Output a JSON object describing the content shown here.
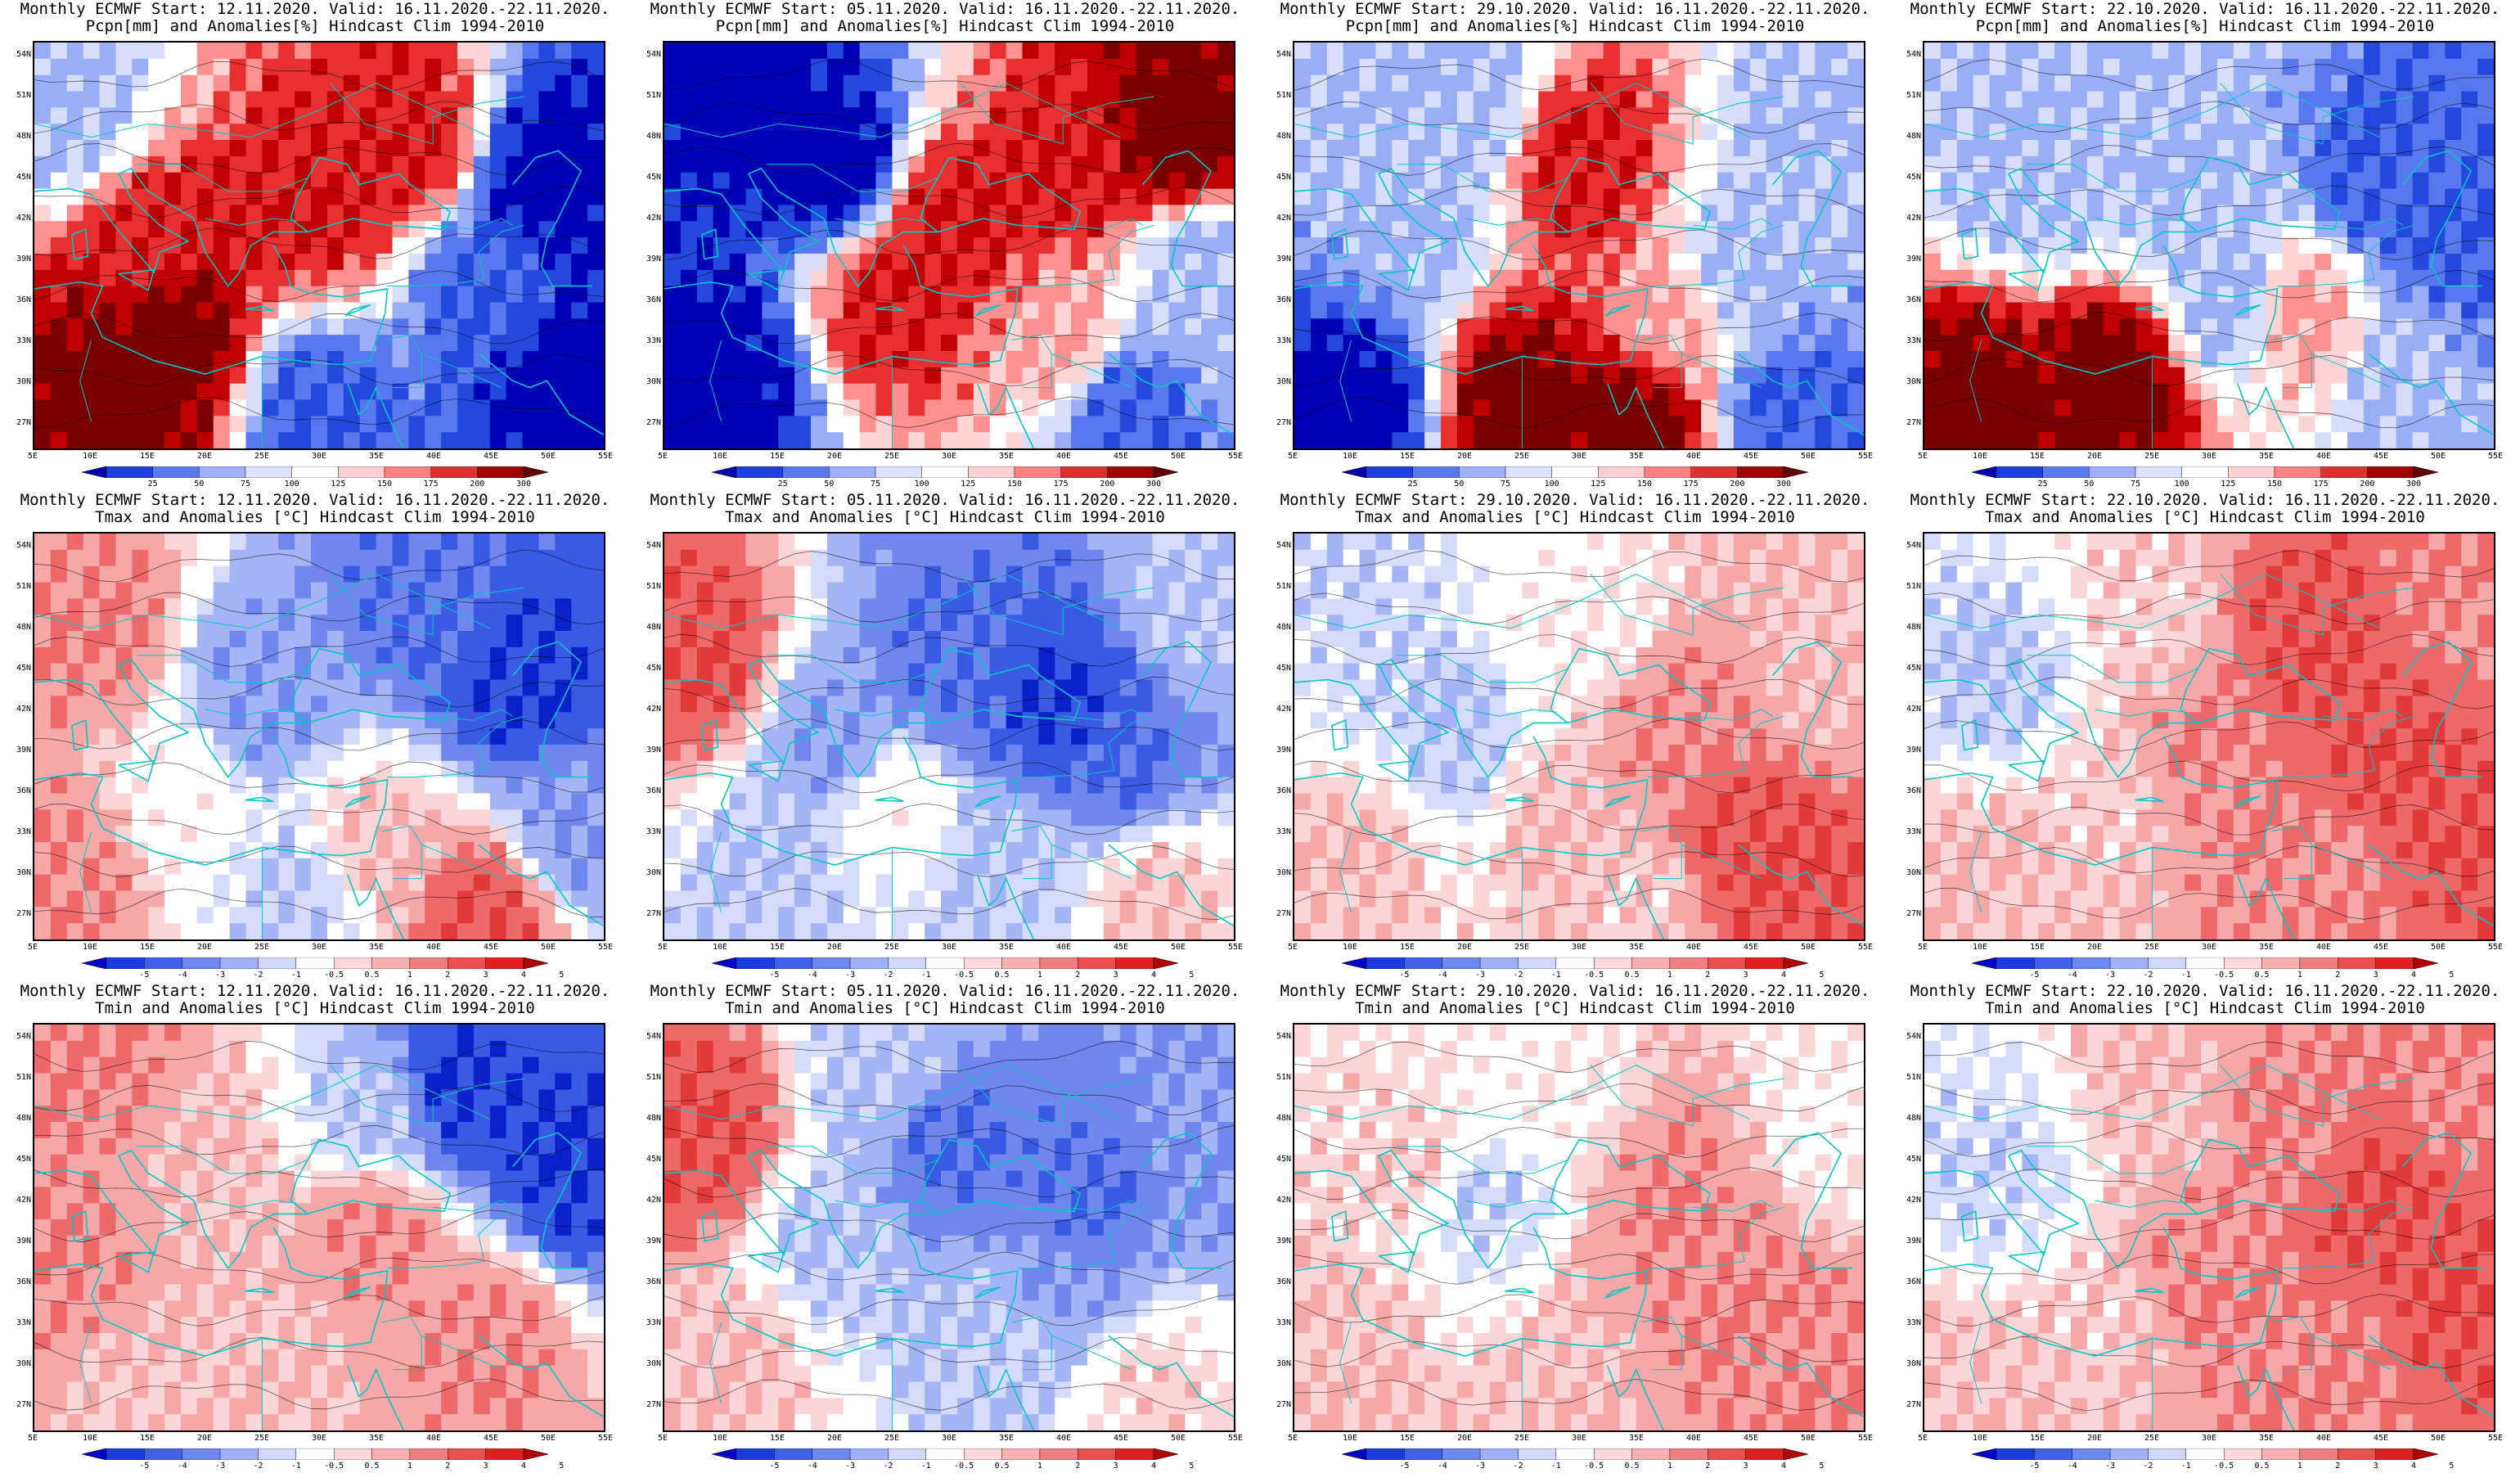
{
  "rows": [
    {
      "variable": "Pcpn[mm] and Anomalies[%] Hindcast Clim 1994-2010",
      "kind": "precip",
      "colorbar_ticks": [
        "25",
        "50",
        "75",
        "100",
        "125",
        "150",
        "175",
        "200",
        "300"
      ],
      "colorbar_colors": [
        "#0000b0",
        "#1f3fe0",
        "#5a78f0",
        "#9fb0f8",
        "#dce4fc",
        "#ffffff",
        "#ffd0d0",
        "#ff8080",
        "#e03030",
        "#a00000",
        "#600000"
      ]
    },
    {
      "variable": "Tmax and Anomalies [°C] Hindcast Clim 1994-2010",
      "kind": "temp",
      "colorbar_ticks": [
        "-5",
        "-4",
        "-3",
        "-2",
        "-1",
        "-0.5",
        "0.5",
        "1",
        "2",
        "3",
        "4",
        "5"
      ],
      "colorbar_colors": [
        "#0000c8",
        "#1a3cdc",
        "#4060e8",
        "#6e88f0",
        "#a0b0f4",
        "#d0d8fa",
        "#ffffff",
        "#fcd8d8",
        "#f8b0b0",
        "#f08080",
        "#e85050",
        "#e02020",
        "#b00000"
      ]
    },
    {
      "variable": "Tmin and Anomalies [°C] Hindcast Clim 1994-2010",
      "kind": "temp",
      "colorbar_ticks": [
        "-5",
        "-4",
        "-3",
        "-2",
        "-1",
        "-0.5",
        "0.5",
        "1",
        "2",
        "3",
        "4",
        "5"
      ],
      "colorbar_colors": [
        "#0000c8",
        "#1a3cdc",
        "#4060e8",
        "#6e88f0",
        "#a0b0f4",
        "#d0d8fa",
        "#ffffff",
        "#fcd8d8",
        "#f8b0b0",
        "#f08080",
        "#e85050",
        "#e02020",
        "#b00000"
      ]
    }
  ],
  "columns": [
    {
      "start_title": "Monthly ECMWF Start: 12.11.2020. Valid: 16.11.2020.-22.11.2020."
    },
    {
      "start_title": "Monthly ECMWF Start: 05.11.2020. Valid: 16.11.2020.-22.11.2020."
    },
    {
      "start_title": "Monthly ECMWF Start: 29.10.2020. Valid: 16.11.2020.-22.11.2020."
    },
    {
      "start_title": "Monthly ECMWF Start: 22.10.2020. Valid: 16.11.2020.-22.11.2020."
    }
  ],
  "lat_labels": [
    "54N",
    "51N",
    "48N",
    "45N",
    "42N",
    "39N",
    "36N",
    "33N",
    "30N",
    "27N"
  ],
  "lat_values": [
    54,
    51,
    48,
    45,
    42,
    39,
    36,
    33,
    30,
    27
  ],
  "lon_labels": [
    "5E",
    "10E",
    "15E",
    "20E",
    "25E",
    "30E",
    "35E",
    "40E",
    "45E",
    "50E",
    "55E"
  ],
  "lon_values": [
    5,
    10,
    15,
    20,
    25,
    30,
    35,
    40,
    45,
    50,
    55
  ],
  "domain": {
    "lon": [
      5,
      55
    ],
    "lat": [
      25,
      55
    ]
  },
  "anomaly_fields": {
    "precip": [
      [
        {
          "lon": 17,
          "lat": 33,
          "v": 3
        },
        {
          "lon": 15,
          "lat": 40,
          "v": 2
        },
        {
          "lon": 12,
          "lat": 29,
          "v": 3
        },
        {
          "lon": 38,
          "lat": 48,
          "v": 2
        },
        {
          "lon": 30,
          "lat": 43,
          "v": 2
        },
        {
          "lon": 45,
          "lat": 37,
          "v": -2
        },
        {
          "lon": 50,
          "lat": 45,
          "v": -3
        },
        {
          "lon": 8,
          "lat": 50,
          "v": -1
        },
        {
          "lon": 30,
          "lat": 28,
          "v": -2
        },
        {
          "lon": 52,
          "lat": 30,
          "v": -3
        }
      ],
      [
        {
          "lon": 20,
          "lat": 46,
          "v": -3
        },
        {
          "lon": 12,
          "lat": 50,
          "v": -3
        },
        {
          "lon": 10,
          "lat": 30,
          "v": -3
        },
        {
          "lon": 30,
          "lat": 42,
          "v": 2
        },
        {
          "lon": 40,
          "lat": 45,
          "v": 2
        },
        {
          "lon": 50,
          "lat": 48,
          "v": 3
        },
        {
          "lon": 25,
          "lat": 36,
          "v": 2
        },
        {
          "lon": 45,
          "lat": 28,
          "v": -2
        },
        {
          "lon": 40,
          "lat": 33,
          "v": 1
        },
        {
          "lon": 52,
          "lat": 38,
          "v": -1
        }
      ],
      [
        {
          "lon": 10,
          "lat": 28,
          "v": -3
        },
        {
          "lon": 30,
          "lat": 46,
          "v": 2
        },
        {
          "lon": 25,
          "lat": 28,
          "v": 3
        },
        {
          "lon": 35,
          "lat": 27,
          "v": 3
        },
        {
          "lon": 20,
          "lat": 50,
          "v": -1
        },
        {
          "lon": 45,
          "lat": 38,
          "v": -1
        },
        {
          "lon": 48,
          "lat": 28,
          "v": -2
        },
        {
          "lon": 38,
          "lat": 34,
          "v": 1
        },
        {
          "lon": 15,
          "lat": 42,
          "v": -1
        },
        {
          "lon": 52,
          "lat": 48,
          "v": -1
        }
      ],
      [
        {
          "lon": 10,
          "lat": 28,
          "v": 3
        },
        {
          "lon": 22,
          "lat": 30,
          "v": 3
        },
        {
          "lon": 30,
          "lat": 42,
          "v": -1
        },
        {
          "lon": 45,
          "lat": 45,
          "v": -2
        },
        {
          "lon": 52,
          "lat": 40,
          "v": -2
        },
        {
          "lon": 15,
          "lat": 45,
          "v": -1
        },
        {
          "lon": 38,
          "lat": 35,
          "v": 1
        },
        {
          "lon": 48,
          "lat": 30,
          "v": -1
        },
        {
          "lon": 25,
          "lat": 50,
          "v": -1
        },
        {
          "lon": 32,
          "lat": 36,
          "v": -1
        }
      ]
    ],
    "tmax": [
      [
        {
          "lon": 40,
          "lat": 50,
          "v": -3
        },
        {
          "lon": 48,
          "lat": 44,
          "v": -4
        },
        {
          "lon": 25,
          "lat": 43,
          "v": -2
        },
        {
          "lon": 10,
          "lat": 48,
          "v": 2
        },
        {
          "lon": 8,
          "lat": 30,
          "v": 2
        },
        {
          "lon": 45,
          "lat": 27,
          "v": 3
        },
        {
          "lon": 18,
          "lat": 35,
          "v": 0.2
        },
        {
          "lon": 35,
          "lat": 32,
          "v": 1
        },
        {
          "lon": 52,
          "lat": 33,
          "v": -2
        },
        {
          "lon": 28,
          "lat": 28,
          "v": -1
        }
      ],
      [
        {
          "lon": 30,
          "lat": 45,
          "v": -3
        },
        {
          "lon": 40,
          "lat": 42,
          "v": -4
        },
        {
          "lon": 45,
          "lat": 38,
          "v": -3
        },
        {
          "lon": 8,
          "lat": 46,
          "v": 3
        },
        {
          "lon": 20,
          "lat": 40,
          "v": -2
        },
        {
          "lon": 15,
          "lat": 30,
          "v": -1
        },
        {
          "lon": 35,
          "lat": 30,
          "v": -1
        },
        {
          "lon": 52,
          "lat": 50,
          "v": -1
        },
        {
          "lon": 25,
          "lat": 35,
          "v": 0.2
        },
        {
          "lon": 48,
          "lat": 28,
          "v": 1
        }
      ],
      [
        {
          "lon": 45,
          "lat": 32,
          "v": 3
        },
        {
          "lon": 38,
          "lat": 40,
          "v": 2
        },
        {
          "lon": 50,
          "lat": 28,
          "v": 3
        },
        {
          "lon": 20,
          "lat": 40,
          "v": -1
        },
        {
          "lon": 10,
          "lat": 30,
          "v": 1
        },
        {
          "lon": 30,
          "lat": 48,
          "v": 0.3
        },
        {
          "lon": 28,
          "lat": 35,
          "v": 1
        },
        {
          "lon": 52,
          "lat": 45,
          "v": 1
        },
        {
          "lon": 12,
          "lat": 48,
          "v": -0.8
        },
        {
          "lon": 35,
          "lat": 28,
          "v": 0.8
        }
      ],
      [
        {
          "lon": 45,
          "lat": 40,
          "v": 3
        },
        {
          "lon": 38,
          "lat": 48,
          "v": 3
        },
        {
          "lon": 50,
          "lat": 35,
          "v": 3
        },
        {
          "lon": 30,
          "lat": 38,
          "v": 2
        },
        {
          "lon": 40,
          "lat": 30,
          "v": 2
        },
        {
          "lon": 12,
          "lat": 44,
          "v": -1
        },
        {
          "lon": 20,
          "lat": 35,
          "v": 0.8
        },
        {
          "lon": 10,
          "lat": 30,
          "v": 1
        },
        {
          "lon": 52,
          "lat": 50,
          "v": 2
        },
        {
          "lon": 25,
          "lat": 50,
          "v": 0.8
        }
      ]
    ],
    "tmin": [
      [
        {
          "lon": 42,
          "lat": 50,
          "v": -4
        },
        {
          "lon": 52,
          "lat": 44,
          "v": -4
        },
        {
          "lon": 10,
          "lat": 52,
          "v": 2
        },
        {
          "lon": 8,
          "lat": 38,
          "v": 2
        },
        {
          "lon": 35,
          "lat": 40,
          "v": 2
        },
        {
          "lon": 45,
          "lat": 32,
          "v": 2
        },
        {
          "lon": 20,
          "lat": 45,
          "v": 1
        },
        {
          "lon": 25,
          "lat": 30,
          "v": 1
        },
        {
          "lon": 35,
          "lat": 48,
          "v": -1
        },
        {
          "lon": 15,
          "lat": 28,
          "v": 1
        }
      ],
      [
        {
          "lon": 30,
          "lat": 46,
          "v": -3
        },
        {
          "lon": 42,
          "lat": 42,
          "v": -3
        },
        {
          "lon": 52,
          "lat": 45,
          "v": -2
        },
        {
          "lon": 8,
          "lat": 47,
          "v": 3
        },
        {
          "lon": 20,
          "lat": 38,
          "v": -1
        },
        {
          "lon": 12,
          "lat": 30,
          "v": 1
        },
        {
          "lon": 35,
          "lat": 32,
          "v": -1
        },
        {
          "lon": 48,
          "lat": 28,
          "v": 0.8
        },
        {
          "lon": 25,
          "lat": 52,
          "v": -1
        },
        {
          "lon": 40,
          "lat": 36,
          "v": -2
        }
      ],
      [
        {
          "lon": 45,
          "lat": 32,
          "v": 2
        },
        {
          "lon": 38,
          "lat": 42,
          "v": 2
        },
        {
          "lon": 50,
          "lat": 28,
          "v": 2
        },
        {
          "lon": 22,
          "lat": 42,
          "v": -0.8
        },
        {
          "lon": 10,
          "lat": 30,
          "v": 1
        },
        {
          "lon": 30,
          "lat": 30,
          "v": 1
        },
        {
          "lon": 15,
          "lat": 45,
          "v": 0.8
        },
        {
          "lon": 52,
          "lat": 48,
          "v": 0.3
        },
        {
          "lon": 28,
          "lat": 50,
          "v": 0.3
        },
        {
          "lon": 40,
          "lat": 36,
          "v": 2
        }
      ],
      [
        {
          "lon": 45,
          "lat": 42,
          "v": 3
        },
        {
          "lon": 38,
          "lat": 48,
          "v": 2
        },
        {
          "lon": 50,
          "lat": 35,
          "v": 3
        },
        {
          "lon": 30,
          "lat": 36,
          "v": 2
        },
        {
          "lon": 42,
          "lat": 30,
          "v": 2
        },
        {
          "lon": 12,
          "lat": 44,
          "v": -0.8
        },
        {
          "lon": 20,
          "lat": 33,
          "v": 0.8
        },
        {
          "lon": 10,
          "lat": 28,
          "v": 1
        },
        {
          "lon": 52,
          "lat": 50,
          "v": 2
        },
        {
          "lon": 25,
          "lat": 50,
          "v": 1
        }
      ]
    ]
  },
  "colors": {
    "coast": "#00c8c8",
    "contour": "#000000",
    "frame": "#000000"
  }
}
